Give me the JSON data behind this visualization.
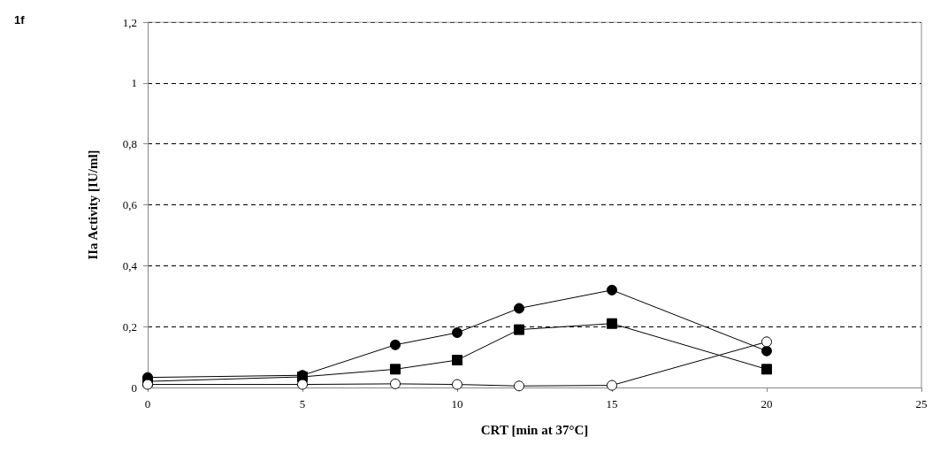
{
  "chart_data": {
    "type": "line",
    "xlabel": "CRT [min at 37°C]",
    "ylabel": "IIa Activity [IU/ml]",
    "annotations": [
      "1f"
    ],
    "x": [
      0,
      5,
      8,
      10,
      12,
      15,
      20
    ],
    "series": [
      {
        "color": "#000000",
        "marker": "circle",
        "values": [
          0.033,
          0.04,
          0.14,
          0.18,
          0.26,
          0.32,
          0.12
        ]
      },
      {
        "color": "#000000",
        "marker": "square",
        "values": [
          0.02,
          0.035,
          0.06,
          0.09,
          0.19,
          0.21,
          0.06
        ]
      },
      {
        "color": "#ffffff",
        "marker": "circle",
        "values": [
          0.01,
          0.01,
          0.012,
          0.01,
          0.005,
          0.007,
          0.15
        ]
      }
    ],
    "xlim": [
      0,
      25
    ],
    "xticks": [
      0,
      5,
      10,
      15,
      20,
      25
    ],
    "ylim": [
      0,
      1.2
    ],
    "yticks": [
      0,
      {
        "value": 0.2,
        "label": "0,2"
      },
      {
        "value": 0.4,
        "label": "0,4"
      },
      {
        "value": 0.6,
        "label": "0,6"
      },
      {
        "value": 0.8,
        "label": "0,8"
      },
      1,
      {
        "value": 1.2,
        "label": "1,2"
      }
    ],
    "grid": "y",
    "line_style": "solid"
  }
}
